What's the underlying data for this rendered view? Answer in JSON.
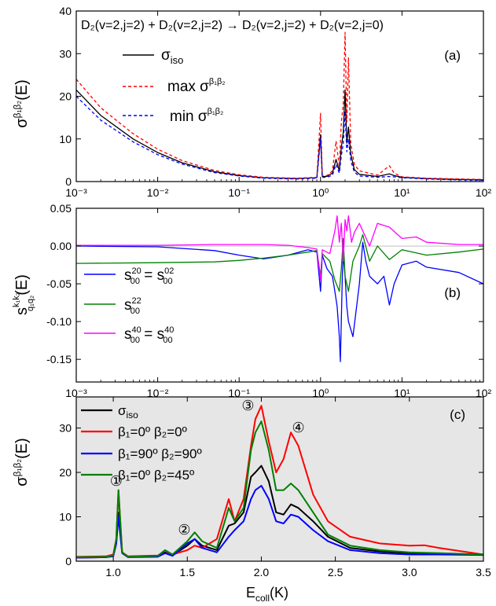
{
  "chart_data": [
    {
      "id": "a",
      "type": "line",
      "panel_label": "(a)",
      "title": "D₂(v=2,j=2) + D₂(v=2,j=2) → D₂(v=2,j=2) + D₂(v=2,j=0)",
      "xscale": "log",
      "xlim": [
        0.001,
        100
      ],
      "ylim": [
        0,
        40
      ],
      "xticks": [
        0.001,
        0.01,
        0.1,
        1,
        10,
        100
      ],
      "xticklabels": [
        "10⁻³",
        "10⁻²",
        "10⁻¹",
        "10⁰",
        "10¹",
        "10²"
      ],
      "yticks": [
        0,
        10,
        20,
        30,
        40
      ],
      "yticklabels": [
        "0",
        "10",
        "20",
        "30",
        "40"
      ],
      "ylabel": "σ^{β₁β₂}(E)",
      "legend_position": "top-left",
      "series": [
        {
          "name": "σiso",
          "color": "#000000",
          "dash": "solid",
          "x": [
            0.001,
            0.002,
            0.005,
            0.01,
            0.02,
            0.05,
            0.1,
            0.2,
            0.5,
            0.9,
            1.0,
            1.05,
            1.2,
            1.4,
            1.55,
            1.7,
            1.8,
            1.9,
            2.0,
            2.1,
            2.2,
            2.35,
            2.6,
            3.0,
            5,
            7,
            8,
            10,
            20,
            50,
            100
          ],
          "y": [
            21.5,
            15.5,
            10,
            6.8,
            4.4,
            2.3,
            1.4,
            0.9,
            0.7,
            0.9,
            11,
            1.2,
            1.2,
            2.0,
            5.2,
            2.5,
            8,
            11.5,
            21.5,
            9,
            12.8,
            6.5,
            2.8,
            1.7,
            1.2,
            1.8,
            1.4,
            1.0,
            0.7,
            0.5,
            0.4
          ]
        },
        {
          "name": "max σ^{β₁β₂}",
          "color": "#ff0000",
          "dash": "dashed",
          "x": [
            0.001,
            0.002,
            0.005,
            0.01,
            0.02,
            0.05,
            0.1,
            0.2,
            0.5,
            0.9,
            1.0,
            1.05,
            1.2,
            1.4,
            1.55,
            1.7,
            1.8,
            1.9,
            2.0,
            2.1,
            2.2,
            2.35,
            2.6,
            3.0,
            5,
            7,
            8,
            10,
            20,
            50,
            100
          ],
          "y": [
            24,
            17.3,
            11.2,
            7.6,
            4.9,
            2.6,
            1.6,
            1.0,
            0.8,
            1.0,
            16,
            1.4,
            1.4,
            2.5,
            9.5,
            3.5,
            14,
            18,
            35,
            14,
            29,
            9,
            4,
            2.5,
            1.5,
            3.7,
            2.0,
            1.1,
            0.8,
            0.6,
            0.5
          ]
        },
        {
          "name": "min σ^{β₁β₂}",
          "color": "#0000ff",
          "dash": "dashed",
          "x": [
            0.001,
            0.002,
            0.005,
            0.01,
            0.02,
            0.05,
            0.1,
            0.2,
            0.5,
            0.9,
            1.0,
            1.05,
            1.2,
            1.4,
            1.55,
            1.7,
            1.8,
            1.9,
            2.0,
            2.1,
            2.2,
            2.35,
            2.6,
            3.0,
            5,
            7,
            8,
            10,
            20,
            50,
            100
          ],
          "y": [
            20,
            14.4,
            9.3,
            6.3,
            4.1,
            2.1,
            1.3,
            0.8,
            0.6,
            0.8,
            10,
            1.0,
            1.0,
            1.5,
            4.0,
            2.0,
            6.0,
            9.0,
            16.5,
            7.0,
            10,
            5.0,
            2.2,
            1.3,
            1.0,
            1.2,
            1.1,
            0.9,
            0.6,
            0.4,
            0.3
          ]
        }
      ]
    },
    {
      "id": "b",
      "type": "line",
      "panel_label": "(b)",
      "xscale": "log",
      "xlim": [
        0.001,
        100
      ],
      "ylim": [
        -0.18,
        0.05
      ],
      "xticks": [
        0.001,
        0.01,
        0.1,
        1,
        10,
        100
      ],
      "xticklabels": [
        "10⁻³",
        "10⁻²",
        "10⁻¹",
        "10⁰",
        "10¹",
        "10²"
      ],
      "yticks": [
        0.05,
        0.0,
        -0.05,
        -0.1,
        -0.15
      ],
      "yticklabels": [
        "0.05",
        "0.00",
        "-0.05",
        "-0.10",
        "-0.15"
      ],
      "ylabel": "s^{k₁k₂}_{q₁q₂}(E)",
      "legend_position": "bottom-left",
      "series": [
        {
          "name": "s^{20}_{00} = s^{02}_{00}",
          "color": "#0000ff",
          "x": [
            0.001,
            0.01,
            0.05,
            0.1,
            0.2,
            0.4,
            0.7,
            0.9,
            1.0,
            1.05,
            1.2,
            1.4,
            1.5,
            1.6,
            1.7,
            1.75,
            1.8,
            1.85,
            1.9,
            2.0,
            2.1,
            2.2,
            2.5,
            3.0,
            3.3,
            3.6,
            4,
            5,
            6,
            7,
            8,
            10,
            15,
            20,
            50,
            100
          ],
          "y": [
            0.0,
            -0.001,
            -0.006,
            -0.012,
            -0.017,
            -0.012,
            -0.005,
            -0.008,
            -0.06,
            -0.012,
            -0.03,
            -0.04,
            -0.06,
            -0.08,
            -0.12,
            -0.153,
            -0.1,
            -0.04,
            -0.01,
            -0.04,
            -0.08,
            -0.1,
            -0.12,
            -0.05,
            0.005,
            -0.02,
            -0.04,
            -0.05,
            -0.04,
            -0.078,
            -0.05,
            -0.025,
            -0.02,
            -0.028,
            -0.035,
            -0.05
          ]
        },
        {
          "name": "s^{22}_{00}",
          "color": "#008000",
          "x": [
            0.001,
            0.01,
            0.05,
            0.1,
            0.2,
            0.4,
            0.7,
            0.9,
            1.0,
            1.05,
            1.3,
            1.5,
            1.7,
            1.8,
            1.9,
            2.0,
            2.2,
            2.5,
            3.0,
            3.3,
            4,
            5,
            7,
            10,
            20,
            50,
            100
          ],
          "y": [
            -0.023,
            -0.022,
            -0.021,
            -0.019,
            -0.016,
            -0.012,
            -0.008,
            -0.006,
            -0.04,
            -0.01,
            -0.02,
            -0.045,
            -0.06,
            -0.03,
            0.01,
            -0.04,
            -0.06,
            -0.02,
            0.0,
            0.015,
            -0.02,
            0.0,
            -0.018,
            -0.005,
            -0.012,
            -0.008,
            -0.004
          ]
        },
        {
          "name": "s^{40}_{00} = s^{40}_{00}",
          "color": "#ff00ff",
          "x": [
            0.001,
            0.01,
            0.05,
            0.1,
            0.2,
            0.4,
            0.7,
            0.9,
            1.0,
            1.05,
            1.3,
            1.5,
            1.6,
            1.7,
            1.8,
            1.9,
            2.0,
            2.1,
            2.2,
            2.4,
            2.6,
            3.0,
            4,
            5,
            7,
            10,
            15,
            20,
            50,
            100
          ],
          "y": [
            0.001,
            0.001,
            0.002,
            0.002,
            0.002,
            0.001,
            -0.002,
            -0.004,
            -0.045,
            -0.005,
            -0.01,
            0.02,
            0.04,
            0.005,
            0.03,
            -0.02,
            0.035,
            0.02,
            0.04,
            0.005,
            0.018,
            0.03,
            0.0,
            0.03,
            0.025,
            0.01,
            0.012,
            0.005,
            0.002,
            0.002
          ]
        }
      ]
    },
    {
      "id": "c",
      "type": "line",
      "panel_label": "(c)",
      "xscale": "linear",
      "xlim": [
        0.75,
        3.5
      ],
      "ylim": [
        0,
        37
      ],
      "xticks": [
        1.0,
        1.5,
        2.0,
        2.5,
        3.0,
        3.5
      ],
      "xticklabels": [
        "1.0",
        "1.5",
        "2.0",
        "2.5",
        "3.0",
        "3.5"
      ],
      "yticks": [
        0,
        10,
        20,
        30
      ],
      "yticklabels": [
        "0",
        "10",
        "20",
        "30"
      ],
      "ylabel": "σ^{β₁β₂}(E)",
      "xlabel": "E_coll(K)",
      "background": "#e6e6e6",
      "legend_position": "top-left",
      "annotations": [
        {
          "text": "①",
          "x": 1.02,
          "y": 17
        },
        {
          "text": "②",
          "x": 1.48,
          "y": 6
        },
        {
          "text": "③",
          "x": 1.91,
          "y": 34
        },
        {
          "text": "④",
          "x": 2.25,
          "y": 29
        }
      ],
      "series": [
        {
          "name": "σiso",
          "color": "#000000",
          "x": [
            0.75,
            0.95,
            1.0,
            1.02,
            1.035,
            1.06,
            1.1,
            1.3,
            1.35,
            1.4,
            1.5,
            1.55,
            1.6,
            1.7,
            1.78,
            1.82,
            1.88,
            1.93,
            1.96,
            2.0,
            2.05,
            2.1,
            2.15,
            2.2,
            2.25,
            2.35,
            2.45,
            2.6,
            2.8,
            3.0,
            3.2,
            3.5
          ],
          "y": [
            0.8,
            0.9,
            1.2,
            4,
            11,
            2,
            1.0,
            1.2,
            2.0,
            1.3,
            3.5,
            5.0,
            3.5,
            2.5,
            8,
            8.5,
            11,
            19,
            20,
            21.5,
            18,
            11,
            10.5,
            12.8,
            12,
            9,
            5.5,
            3.0,
            2.2,
            1.8,
            1.7,
            1.5
          ]
        },
        {
          "name": "β₁=0º β₂=0º",
          "color": "#ff0000",
          "x": [
            0.75,
            0.95,
            1.0,
            1.02,
            1.035,
            1.06,
            1.1,
            1.3,
            1.35,
            1.4,
            1.5,
            1.55,
            1.6,
            1.7,
            1.78,
            1.82,
            1.88,
            1.93,
            1.96,
            2.0,
            2.05,
            2.1,
            2.15,
            2.2,
            2.25,
            2.35,
            2.45,
            2.6,
            2.8,
            3.0,
            3.1,
            3.2,
            3.5
          ],
          "y": [
            1.0,
            1.1,
            1.5,
            5,
            16,
            2,
            1.1,
            1.3,
            1.8,
            1.5,
            2.5,
            3.5,
            3.0,
            5,
            14,
            9,
            14,
            26,
            32,
            35,
            27,
            20,
            23,
            29,
            26,
            15,
            9,
            5.5,
            4.0,
            3.5,
            3.6,
            3.0,
            1.5
          ]
        },
        {
          "name": "β₁=90º β₂=90º",
          "color": "#0000ff",
          "x": [
            0.75,
            0.95,
            1.0,
            1.02,
            1.035,
            1.06,
            1.1,
            1.3,
            1.35,
            1.4,
            1.5,
            1.55,
            1.6,
            1.7,
            1.78,
            1.82,
            1.88,
            1.93,
            1.96,
            2.0,
            2.05,
            2.1,
            2.15,
            2.2,
            2.25,
            2.35,
            2.45,
            2.6,
            2.8,
            3.0,
            3.2,
            3.5
          ],
          "y": [
            0.8,
            0.9,
            1.1,
            4,
            10,
            1.8,
            0.9,
            1.0,
            1.8,
            1.2,
            4.0,
            5.0,
            3.0,
            2.0,
            5.5,
            7,
            9,
            14,
            16,
            17,
            14,
            9,
            8.5,
            10.5,
            10,
            7,
            4.5,
            2.5,
            1.8,
            1.5,
            1.5,
            1.4
          ]
        },
        {
          "name": "β₁=0º β₂=45º",
          "color": "#008000",
          "x": [
            0.75,
            0.95,
            1.0,
            1.02,
            1.035,
            1.06,
            1.1,
            1.3,
            1.35,
            1.4,
            1.5,
            1.55,
            1.6,
            1.7,
            1.78,
            1.82,
            1.88,
            1.93,
            1.96,
            2.0,
            2.05,
            2.1,
            2.15,
            2.2,
            2.25,
            2.35,
            2.45,
            2.6,
            2.8,
            3.0,
            3.2,
            3.5
          ],
          "y": [
            0.9,
            1.0,
            1.3,
            5,
            16,
            2,
            1.0,
            1.2,
            2.5,
            1.5,
            4.5,
            6.5,
            4.5,
            3.0,
            12,
            9,
            12,
            25,
            29,
            31.5,
            25,
            16,
            16,
            17.5,
            16,
            11,
            6,
            3.5,
            2.5,
            2.0,
            1.8,
            1.5
          ]
        }
      ]
    }
  ]
}
